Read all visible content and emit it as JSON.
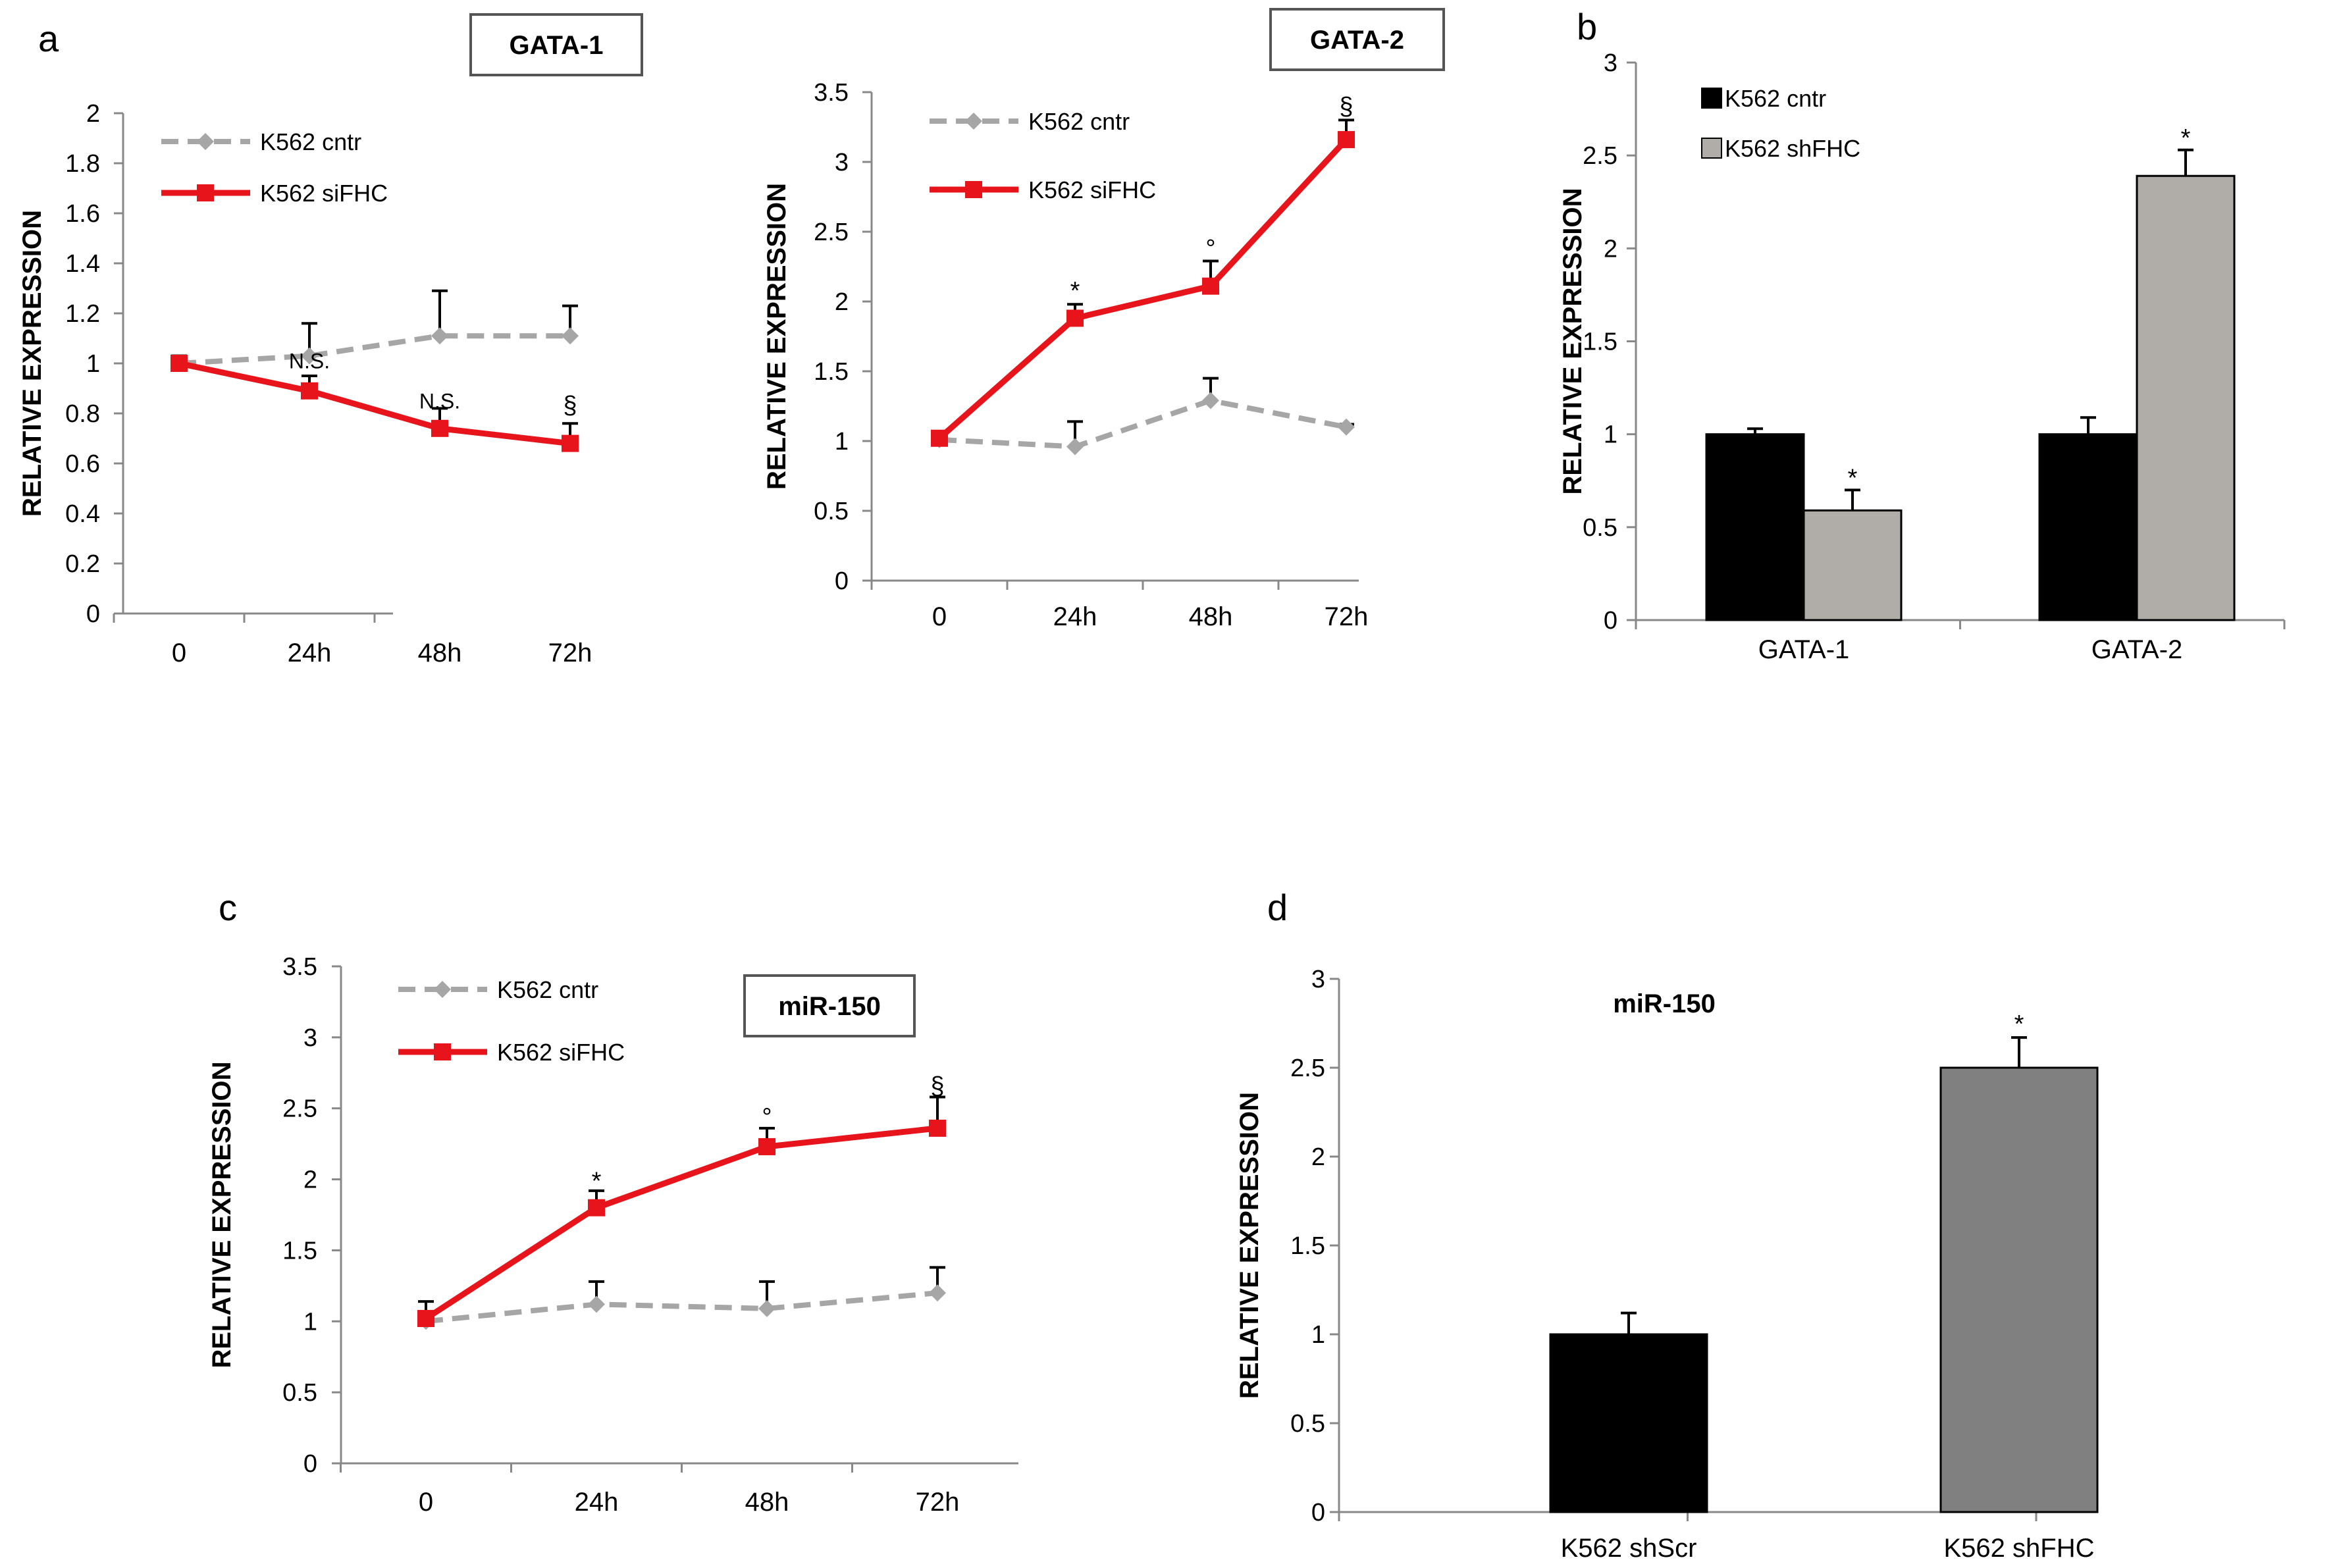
{
  "colors": {
    "red": "#e8141c",
    "gray_line": "#a6a6a6",
    "black": "#000000",
    "light_bar": "#b0ada8",
    "dark_gray_bar": "#808080"
  },
  "chart_data": [
    {
      "panel": "a",
      "title": "GATA-1",
      "type": "line",
      "categories": [
        "0",
        "24h",
        "48h",
        "72h"
      ],
      "ylabel": "RELATIVE EXPRESSION",
      "ylim": [
        0,
        2
      ],
      "yticks": [
        "0",
        "0.2",
        "0.4",
        "0.6",
        "0.8",
        "1",
        "1.2",
        "1.4",
        "1.6",
        "1.8",
        "2"
      ],
      "series": [
        {
          "name": "K562 cntr",
          "values": [
            1.0,
            1.03,
            1.11,
            1.11
          ],
          "errors": [
            0.03,
            0.13,
            0.18,
            0.12
          ],
          "color": "#a6a6a6",
          "dash": true,
          "marker": "diamond"
        },
        {
          "name": "K562 siFHC",
          "values": [
            1.0,
            0.89,
            0.74,
            0.68
          ],
          "errors": [
            0.03,
            0.06,
            0.08,
            0.08
          ],
          "color": "#e8141c",
          "dash": false,
          "marker": "square"
        }
      ],
      "annotations": [
        {
          "text": "N.S.",
          "category": 1,
          "y": 0.98
        },
        {
          "text": "N.S.",
          "category": 2,
          "y": 0.82
        },
        {
          "text": "§",
          "category": 3,
          "y": 0.8
        }
      ],
      "legend": "top-left"
    },
    {
      "panel": "",
      "title": "GATA-2",
      "type": "line",
      "categories": [
        "0",
        "24h",
        "48h",
        "72h"
      ],
      "ylabel": "RELATIVE EXPRESSION",
      "ylim": [
        0,
        3.5
      ],
      "yticks": [
        "0",
        "0.5",
        "1",
        "1.5",
        "2",
        "2.5",
        "3",
        "3.5"
      ],
      "series": [
        {
          "name": "K562 cntr",
          "values": [
            1.01,
            0.96,
            1.29,
            1.1
          ],
          "errors": [
            0.02,
            0.18,
            0.16,
            0.02
          ],
          "color": "#a6a6a6",
          "dash": true,
          "marker": "diamond"
        },
        {
          "name": "K562 siFHC",
          "values": [
            1.02,
            1.88,
            2.11,
            3.16
          ],
          "errors": [
            0.02,
            0.1,
            0.18,
            0.14
          ],
          "color": "#e8141c",
          "dash": false,
          "marker": "square"
        }
      ],
      "annotations": [
        {
          "text": "*",
          "category": 1,
          "y": 2.02
        },
        {
          "text": "°",
          "category": 2,
          "y": 2.32
        },
        {
          "text": "§",
          "category": 3,
          "y": 3.34
        }
      ],
      "legend": "top-left"
    },
    {
      "panel": "b",
      "title": "",
      "type": "bar",
      "categories": [
        "GATA-1",
        "GATA-2"
      ],
      "ylabel": "RELATIVE EXPRESSION",
      "ylim": [
        0,
        3
      ],
      "yticks": [
        "0",
        "0.5",
        "1",
        "1.5",
        "2",
        "2.5",
        "3"
      ],
      "series": [
        {
          "name": "K562 cntr",
          "values": [
            1.0,
            1.0
          ],
          "errors": [
            0.03,
            0.09
          ],
          "color": "#000000"
        },
        {
          "name": "K562 shFHC",
          "values": [
            0.59,
            2.39
          ],
          "errors": [
            0.11,
            0.14
          ],
          "color": "#b0ada8"
        }
      ],
      "annotations": [
        {
          "text": "*",
          "category": 0,
          "series": 1,
          "y": 0.72
        },
        {
          "text": "*",
          "category": 1,
          "series": 1,
          "y": 2.55
        }
      ],
      "legend": "top-left"
    },
    {
      "panel": "c",
      "title": "miR-150",
      "type": "line",
      "categories": [
        "0",
        "24h",
        "48h",
        "72h"
      ],
      "ylabel": "RELATIVE EXPRESSION",
      "ylim": [
        0,
        3.5
      ],
      "yticks": [
        "0",
        "0.5",
        "1",
        "1.5",
        "2",
        "2.5",
        "3",
        "3.5"
      ],
      "series": [
        {
          "name": "K562 cntr",
          "values": [
            1.0,
            1.12,
            1.09,
            1.2
          ],
          "errors": [
            0.14,
            0.16,
            0.19,
            0.18
          ],
          "color": "#a6a6a6",
          "dash": true,
          "marker": "diamond"
        },
        {
          "name": "K562 siFHC",
          "values": [
            1.02,
            1.8,
            2.23,
            2.36
          ],
          "errors": [
            0.02,
            0.12,
            0.13,
            0.22
          ],
          "color": "#e8141c",
          "dash": false,
          "marker": "square"
        }
      ],
      "annotations": [
        {
          "text": "*",
          "category": 1,
          "y": 1.93
        },
        {
          "text": "°",
          "category": 2,
          "y": 2.38
        },
        {
          "text": "§",
          "category": 3,
          "y": 2.6
        }
      ],
      "legend": "top-left"
    },
    {
      "panel": "d",
      "title": "miR-150",
      "type": "bar",
      "categories": [
        "K562 shScr",
        "K562 shFHC"
      ],
      "ylabel": "RELATIVE EXPRESSION",
      "ylim": [
        0,
        3
      ],
      "yticks": [
        "0",
        "0.5",
        "1",
        "1.5",
        "2",
        "2.5",
        "3"
      ],
      "series": [
        {
          "name": "",
          "values": [
            1.0,
            2.5
          ],
          "errors": [
            0.12,
            0.17
          ],
          "colors": [
            "#000000",
            "#808080"
          ]
        }
      ],
      "annotations": [
        {
          "text": "*",
          "category": 1,
          "y": 2.7
        }
      ],
      "legend": "none"
    }
  ]
}
